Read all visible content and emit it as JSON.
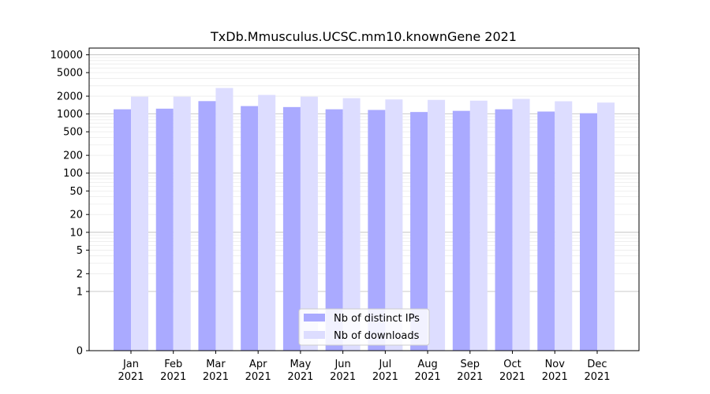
{
  "chart_data": {
    "type": "bar",
    "title": "TxDb.Mmusculus.UCSC.mm10.knownGene 2021",
    "xlabel": "",
    "ylabel": "",
    "yscale": "symlog",
    "ylim": [
      0,
      13000
    ],
    "yticks": [
      0,
      1,
      2,
      5,
      10,
      20,
      50,
      100,
      200,
      500,
      1000,
      2000,
      5000,
      10000
    ],
    "categories": [
      {
        "month": "Jan",
        "year": "2021"
      },
      {
        "month": "Feb",
        "year": "2021"
      },
      {
        "month": "Mar",
        "year": "2021"
      },
      {
        "month": "Apr",
        "year": "2021"
      },
      {
        "month": "May",
        "year": "2021"
      },
      {
        "month": "Jun",
        "year": "2021"
      },
      {
        "month": "Jul",
        "year": "2021"
      },
      {
        "month": "Aug",
        "year": "2021"
      },
      {
        "month": "Sep",
        "year": "2021"
      },
      {
        "month": "Oct",
        "year": "2021"
      },
      {
        "month": "Nov",
        "year": "2021"
      },
      {
        "month": "Dec",
        "year": "2021"
      }
    ],
    "series": [
      {
        "name": "Nb of distinct IPs",
        "color": "#aaaaff",
        "values": [
          1200,
          1230,
          1650,
          1360,
          1310,
          1200,
          1170,
          1080,
          1130,
          1200,
          1100,
          1030
        ]
      },
      {
        "name": "Nb of downloads",
        "color": "#ddddff",
        "values": [
          1960,
          1960,
          2750,
          2100,
          1960,
          1850,
          1760,
          1730,
          1680,
          1800,
          1640,
          1560
        ]
      }
    ],
    "grid": true,
    "legend_position": "bottom-center"
  }
}
